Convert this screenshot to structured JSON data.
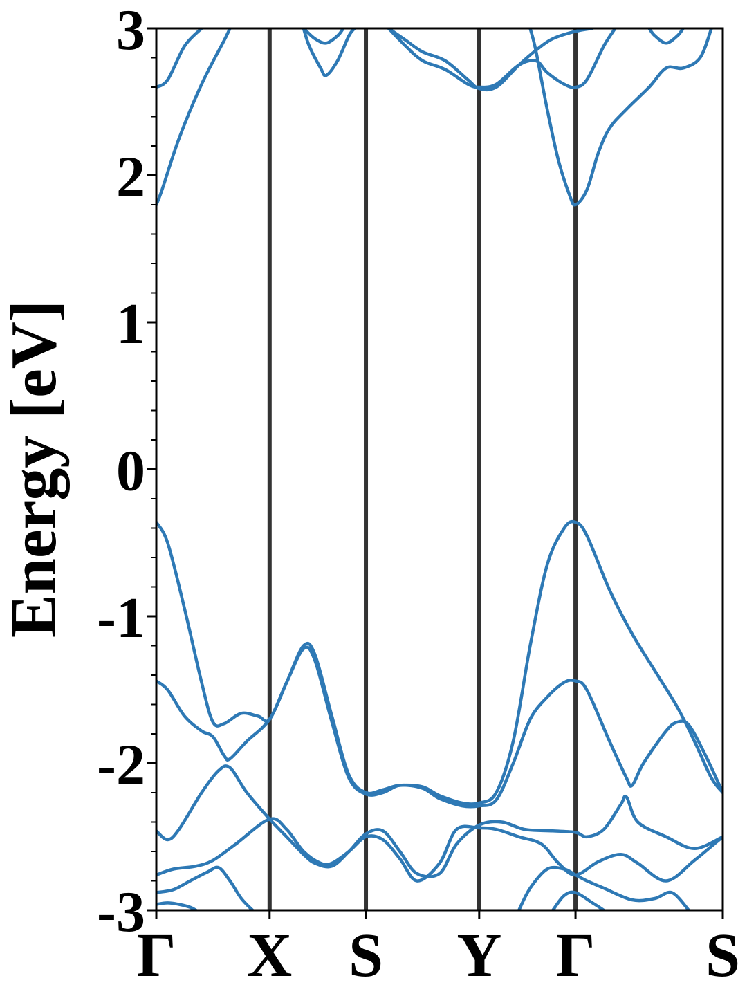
{
  "chart_data": {
    "type": "line",
    "title": "",
    "xlabel": "",
    "ylabel": "Energy [eV]",
    "ylim": [
      -3,
      3
    ],
    "y_ticks": [
      3,
      2,
      1,
      0,
      -1,
      -2,
      -3
    ],
    "y_tick_labels": [
      "3",
      "2",
      "1",
      "0",
      "-1",
      "-2",
      "-3"
    ],
    "y_minor_step": 0.2,
    "x_range": [
      0,
      1
    ],
    "kpoints": [
      {
        "label": "Γ",
        "x": 0.0
      },
      {
        "label": "X",
        "x": 0.2
      },
      {
        "label": "S",
        "x": 0.37
      },
      {
        "label": "Y",
        "x": 0.57
      },
      {
        "label": "Γ",
        "x": 0.74
      },
      {
        "label": "S",
        "x": 1.0
      }
    ],
    "grid": false,
    "legend": "none",
    "band_color": "#2e79b5",
    "kline_color": "#333333",
    "series": [
      {
        "values": [
          [
            0,
            -0.36
          ],
          [
            0.02,
            -0.5
          ],
          [
            0.05,
            -0.95
          ],
          [
            0.08,
            -1.45
          ],
          [
            0.1,
            -1.72
          ],
          [
            0.12,
            -1.73
          ],
          [
            0.15,
            -1.66
          ],
          [
            0.18,
            -1.68
          ],
          [
            0.2,
            -1.7
          ],
          [
            0.23,
            -1.45
          ],
          [
            0.26,
            -1.2
          ],
          [
            0.28,
            -1.26
          ],
          [
            0.31,
            -1.68
          ],
          [
            0.34,
            -2.08
          ],
          [
            0.37,
            -2.2
          ],
          [
            0.4,
            -2.18
          ],
          [
            0.43,
            -2.15
          ],
          [
            0.47,
            -2.16
          ],
          [
            0.5,
            -2.22
          ],
          [
            0.54,
            -2.27
          ],
          [
            0.57,
            -2.27
          ],
          [
            0.6,
            -2.2
          ],
          [
            0.63,
            -1.85
          ],
          [
            0.66,
            -1.2
          ],
          [
            0.69,
            -0.65
          ],
          [
            0.72,
            -0.4
          ],
          [
            0.74,
            -0.36
          ],
          [
            0.76,
            -0.45
          ],
          [
            0.8,
            -0.82
          ],
          [
            0.84,
            -1.12
          ],
          [
            0.88,
            -1.37
          ],
          [
            0.92,
            -1.62
          ],
          [
            0.95,
            -1.85
          ],
          [
            0.98,
            -2.1
          ],
          [
            1.0,
            -2.2
          ]
        ]
      },
      {
        "values": [
          [
            0,
            -1.44
          ],
          [
            0.02,
            -1.5
          ],
          [
            0.05,
            -1.68
          ],
          [
            0.08,
            -1.78
          ],
          [
            0.1,
            -1.82
          ],
          [
            0.12,
            -1.95
          ],
          [
            0.13,
            -1.97
          ],
          [
            0.16,
            -1.85
          ],
          [
            0.2,
            -1.7
          ],
          [
            0.23,
            -1.45
          ],
          [
            0.26,
            -1.22
          ],
          [
            0.28,
            -1.3
          ],
          [
            0.31,
            -1.72
          ],
          [
            0.34,
            -2.1
          ],
          [
            0.37,
            -2.21
          ],
          [
            0.4,
            -2.2
          ],
          [
            0.43,
            -2.15
          ],
          [
            0.47,
            -2.17
          ],
          [
            0.5,
            -2.24
          ],
          [
            0.54,
            -2.29
          ],
          [
            0.57,
            -2.29
          ],
          [
            0.6,
            -2.25
          ],
          [
            0.63,
            -2.0
          ],
          [
            0.66,
            -1.7
          ],
          [
            0.69,
            -1.55
          ],
          [
            0.72,
            -1.45
          ],
          [
            0.74,
            -1.44
          ],
          [
            0.76,
            -1.5
          ],
          [
            0.8,
            -1.85
          ],
          [
            0.83,
            -2.1
          ],
          [
            0.84,
            -2.15
          ],
          [
            0.86,
            -2.0
          ],
          [
            0.9,
            -1.78
          ],
          [
            0.92,
            -1.72
          ],
          [
            0.94,
            -1.74
          ],
          [
            0.97,
            -1.95
          ],
          [
            1.0,
            -2.2
          ]
        ]
      },
      {
        "values": [
          [
            0,
            -2.46
          ],
          [
            0.02,
            -2.52
          ],
          [
            0.04,
            -2.45
          ],
          [
            0.08,
            -2.2
          ],
          [
            0.11,
            -2.05
          ],
          [
            0.13,
            -2.03
          ],
          [
            0.16,
            -2.2
          ],
          [
            0.2,
            -2.38
          ],
          [
            0.23,
            -2.5
          ],
          [
            0.26,
            -2.62
          ],
          [
            0.28,
            -2.68
          ],
          [
            0.31,
            -2.7
          ],
          [
            0.34,
            -2.6
          ],
          [
            0.37,
            -2.48
          ],
          [
            0.4,
            -2.46
          ],
          [
            0.43,
            -2.6
          ],
          [
            0.46,
            -2.75
          ],
          [
            0.5,
            -2.75
          ],
          [
            0.53,
            -2.55
          ],
          [
            0.57,
            -2.42
          ],
          [
            0.61,
            -2.4
          ],
          [
            0.65,
            -2.45
          ],
          [
            0.7,
            -2.46
          ],
          [
            0.74,
            -2.47
          ],
          [
            0.76,
            -2.5
          ],
          [
            0.79,
            -2.45
          ],
          [
            0.82,
            -2.28
          ],
          [
            0.83,
            -2.23
          ],
          [
            0.85,
            -2.4
          ],
          [
            0.9,
            -2.5
          ],
          [
            0.95,
            -2.58
          ],
          [
            1.0,
            -2.5
          ]
        ]
      },
      {
        "values": [
          [
            0,
            -2.76
          ],
          [
            0.03,
            -2.72
          ],
          [
            0.07,
            -2.7
          ],
          [
            0.1,
            -2.66
          ],
          [
            0.14,
            -2.55
          ],
          [
            0.2,
            -2.38
          ],
          [
            0.23,
            -2.45
          ],
          [
            0.26,
            -2.6
          ],
          [
            0.29,
            -2.68
          ],
          [
            0.31,
            -2.68
          ],
          [
            0.34,
            -2.6
          ],
          [
            0.37,
            -2.5
          ],
          [
            0.4,
            -2.52
          ],
          [
            0.43,
            -2.65
          ],
          [
            0.46,
            -2.8
          ],
          [
            0.5,
            -2.68
          ],
          [
            0.53,
            -2.45
          ],
          [
            0.57,
            -2.44
          ],
          [
            0.6,
            -2.45
          ],
          [
            0.64,
            -2.5
          ],
          [
            0.68,
            -2.55
          ],
          [
            0.71,
            -2.68
          ],
          [
            0.74,
            -2.76
          ],
          [
            0.78,
            -2.67
          ],
          [
            0.82,
            -2.62
          ],
          [
            0.85,
            -2.68
          ],
          [
            0.9,
            -2.8
          ],
          [
            0.95,
            -2.66
          ],
          [
            1.0,
            -2.5
          ]
        ]
      },
      {
        "values": [
          [
            0,
            -2.88
          ],
          [
            0.03,
            -2.86
          ],
          [
            0.06,
            -2.8
          ],
          [
            0.09,
            -2.74
          ],
          [
            0.11,
            -2.71
          ],
          [
            0.13,
            -2.8
          ],
          [
            0.15,
            -2.92
          ],
          [
            0.17,
            -3.0
          ]
        ]
      },
      {
        "values": [
          [
            0,
            -2.96
          ],
          [
            0.02,
            -2.95
          ],
          [
            0.04,
            -2.96
          ],
          [
            0.06,
            -2.98
          ],
          [
            0.07,
            -3.0
          ]
        ]
      },
      {
        "values": [
          [
            0.64,
            -3.0
          ],
          [
            0.66,
            -2.85
          ],
          [
            0.69,
            -2.72
          ],
          [
            0.72,
            -2.72
          ],
          [
            0.74,
            -2.76
          ],
          [
            0.76,
            -2.8
          ],
          [
            0.79,
            -2.85
          ],
          [
            0.84,
            -2.93
          ],
          [
            0.88,
            -2.92
          ],
          [
            0.91,
            -2.88
          ],
          [
            0.94,
            -3.0
          ]
        ]
      },
      {
        "values": [
          [
            0.7,
            -3.0
          ],
          [
            0.72,
            -2.9
          ],
          [
            0.74,
            -2.88
          ],
          [
            0.77,
            -2.95
          ],
          [
            0.79,
            -3.0
          ]
        ]
      },
      {
        "values": [
          [
            0,
            1.8
          ],
          [
            0.01,
            1.9
          ],
          [
            0.04,
            2.25
          ],
          [
            0.08,
            2.62
          ],
          [
            0.12,
            2.92
          ],
          [
            0.13,
            3.0
          ]
        ]
      },
      {
        "values": [
          [
            0,
            2.6
          ],
          [
            0.02,
            2.65
          ],
          [
            0.05,
            2.88
          ],
          [
            0.08,
            3.0
          ]
        ]
      },
      {
        "values": [
          [
            0.26,
            3.0
          ],
          [
            0.27,
            2.88
          ],
          [
            0.29,
            2.73
          ],
          [
            0.3,
            2.68
          ],
          [
            0.32,
            2.78
          ],
          [
            0.34,
            2.95
          ],
          [
            0.35,
            3.0
          ]
        ]
      },
      {
        "values": [
          [
            0.26,
            3.0
          ],
          [
            0.28,
            2.93
          ],
          [
            0.3,
            2.9
          ],
          [
            0.32,
            2.95
          ],
          [
            0.33,
            3.0
          ]
        ]
      },
      {
        "values": [
          [
            0.41,
            3.0
          ],
          [
            0.44,
            2.88
          ],
          [
            0.47,
            2.78
          ],
          [
            0.51,
            2.72
          ],
          [
            0.55,
            2.62
          ],
          [
            0.57,
            2.6
          ],
          [
            0.6,
            2.62
          ],
          [
            0.64,
            2.75
          ],
          [
            0.67,
            2.78
          ],
          [
            0.69,
            2.7
          ],
          [
            0.72,
            2.62
          ],
          [
            0.74,
            2.6
          ],
          [
            0.76,
            2.65
          ],
          [
            0.79,
            2.88
          ],
          [
            0.81,
            3.0
          ]
        ]
      },
      {
        "values": [
          [
            0.41,
            3.0
          ],
          [
            0.44,
            2.92
          ],
          [
            0.47,
            2.84
          ],
          [
            0.51,
            2.78
          ],
          [
            0.55,
            2.65
          ],
          [
            0.57,
            2.59
          ],
          [
            0.6,
            2.6
          ],
          [
            0.64,
            2.75
          ],
          [
            0.67,
            2.85
          ],
          [
            0.7,
            2.93
          ],
          [
            0.74,
            2.98
          ],
          [
            0.77,
            3.0
          ]
        ]
      },
      {
        "values": [
          [
            0.66,
            3.0
          ],
          [
            0.67,
            2.85
          ],
          [
            0.69,
            2.45
          ],
          [
            0.71,
            2.1
          ],
          [
            0.73,
            1.86
          ],
          [
            0.74,
            1.8
          ],
          [
            0.76,
            1.9
          ],
          [
            0.78,
            2.15
          ],
          [
            0.8,
            2.32
          ],
          [
            0.83,
            2.45
          ],
          [
            0.87,
            2.6
          ],
          [
            0.9,
            2.73
          ],
          [
            0.93,
            2.73
          ],
          [
            0.96,
            2.8
          ],
          [
            0.98,
            3.0
          ]
        ]
      },
      {
        "values": [
          [
            0.87,
            3.0
          ],
          [
            0.88,
            2.95
          ],
          [
            0.9,
            2.9
          ],
          [
            0.92,
            2.95
          ],
          [
            0.93,
            3.0
          ]
        ]
      }
    ]
  }
}
